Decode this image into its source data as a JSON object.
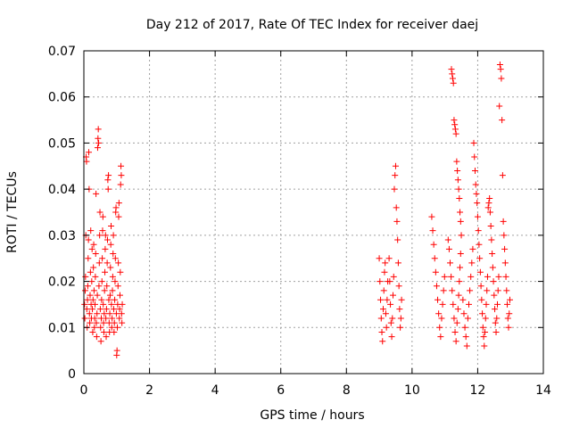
{
  "chart_data": {
    "type": "scatter",
    "title": "Day 212 of 2017, Rate Of TEC Index for receiver daej",
    "xlabel": "GPS time / hours",
    "ylabel": "ROTI / TECUs",
    "xlim": [
      0,
      14
    ],
    "ylim": [
      0,
      0.07
    ],
    "x_ticks": [
      "0",
      "2",
      "4",
      "6",
      "8",
      "10",
      "12",
      "14"
    ],
    "y_ticks": [
      "0",
      "0.01",
      "0.02",
      "0.03",
      "0.04",
      "0.05",
      "0.06",
      "0.07"
    ],
    "grid": true,
    "marker": "+",
    "series": [
      {
        "color": "#ff0000",
        "points": [
          [
            0.02,
            0.015
          ],
          [
            0.03,
            0.012
          ],
          [
            0.04,
            0.018
          ],
          [
            0.05,
            0.021
          ],
          [
            0.06,
            0.03
          ],
          [
            0.07,
            0.047
          ],
          [
            0.08,
            0.046
          ],
          [
            0.09,
            0.014
          ],
          [
            0.1,
            0.01
          ],
          [
            0.11,
            0.016
          ],
          [
            0.12,
            0.019
          ],
          [
            0.13,
            0.025
          ],
          [
            0.14,
            0.029
          ],
          [
            0.15,
            0.048
          ],
          [
            0.16,
            0.04
          ],
          [
            0.17,
            0.013
          ],
          [
            0.18,
            0.011
          ],
          [
            0.19,
            0.017
          ],
          [
            0.2,
            0.022
          ],
          [
            0.21,
            0.031
          ],
          [
            0.22,
            0.015
          ],
          [
            0.23,
            0.012
          ],
          [
            0.24,
            0.02
          ],
          [
            0.25,
            0.027
          ],
          [
            0.26,
            0.014
          ],
          [
            0.27,
            0.009
          ],
          [
            0.28,
            0.016
          ],
          [
            0.29,
            0.023
          ],
          [
            0.3,
            0.028
          ],
          [
            0.31,
            0.018
          ],
          [
            0.32,
            0.01
          ],
          [
            0.33,
            0.012
          ],
          [
            0.34,
            0.015
          ],
          [
            0.35,
            0.021
          ],
          [
            0.36,
            0.026
          ],
          [
            0.37,
            0.039
          ],
          [
            0.38,
            0.011
          ],
          [
            0.39,
            0.008
          ],
          [
            0.4,
            0.013
          ],
          [
            0.41,
            0.017
          ],
          [
            0.42,
            0.049
          ],
          [
            0.43,
            0.051
          ],
          [
            0.44,
            0.053
          ],
          [
            0.45,
            0.05
          ],
          [
            0.46,
            0.019
          ],
          [
            0.47,
            0.024
          ],
          [
            0.48,
            0.03
          ],
          [
            0.49,
            0.035
          ],
          [
            0.5,
            0.014
          ],
          [
            0.51,
            0.01
          ],
          [
            0.52,
            0.007
          ],
          [
            0.53,
            0.012
          ],
          [
            0.54,
            0.016
          ],
          [
            0.55,
            0.02
          ],
          [
            0.56,
            0.025
          ],
          [
            0.57,
            0.031
          ],
          [
            0.58,
            0.034
          ],
          [
            0.59,
            0.015
          ],
          [
            0.6,
            0.011
          ],
          [
            0.61,
            0.009
          ],
          [
            0.62,
            0.013
          ],
          [
            0.63,
            0.018
          ],
          [
            0.64,
            0.022
          ],
          [
            0.65,
            0.027
          ],
          [
            0.66,
            0.03
          ],
          [
            0.67,
            0.012
          ],
          [
            0.68,
            0.008
          ],
          [
            0.69,
            0.014
          ],
          [
            0.7,
            0.019
          ],
          [
            0.71,
            0.024
          ],
          [
            0.72,
            0.029
          ],
          [
            0.73,
            0.042
          ],
          [
            0.74,
            0.04
          ],
          [
            0.75,
            0.043
          ],
          [
            0.76,
            0.016
          ],
          [
            0.77,
            0.011
          ],
          [
            0.78,
            0.009
          ],
          [
            0.79,
            0.013
          ],
          [
            0.8,
            0.017
          ],
          [
            0.81,
            0.023
          ],
          [
            0.82,
            0.028
          ],
          [
            0.83,
            0.032
          ],
          [
            0.84,
            0.015
          ],
          [
            0.85,
            0.01
          ],
          [
            0.86,
            0.012
          ],
          [
            0.87,
            0.018
          ],
          [
            0.88,
            0.021
          ],
          [
            0.89,
            0.026
          ],
          [
            0.9,
            0.03
          ],
          [
            0.91,
            0.014
          ],
          [
            0.92,
            0.009
          ],
          [
            0.93,
            0.011
          ],
          [
            0.94,
            0.016
          ],
          [
            0.95,
            0.02
          ],
          [
            0.96,
            0.025
          ],
          [
            0.97,
            0.035
          ],
          [
            0.98,
            0.036
          ],
          [
            0.99,
            0.013
          ],
          [
            1.0,
            0.004
          ],
          [
            1.01,
            0.005
          ],
          [
            1.02,
            0.01
          ],
          [
            1.03,
            0.015
          ],
          [
            1.04,
            0.019
          ],
          [
            1.05,
            0.024
          ],
          [
            1.06,
            0.034
          ],
          [
            1.07,
            0.037
          ],
          [
            1.08,
            0.012
          ],
          [
            1.09,
            0.014
          ],
          [
            1.1,
            0.017
          ],
          [
            1.11,
            0.022
          ],
          [
            1.12,
            0.041
          ],
          [
            1.13,
            0.045
          ],
          [
            1.14,
            0.043
          ],
          [
            1.15,
            0.013
          ],
          [
            1.16,
            0.011
          ],
          [
            1.17,
            0.015
          ],
          [
            9.0,
            0.025
          ],
          [
            9.02,
            0.02
          ],
          [
            9.04,
            0.016
          ],
          [
            9.06,
            0.012
          ],
          [
            9.08,
            0.009
          ],
          [
            9.1,
            0.007
          ],
          [
            9.12,
            0.014
          ],
          [
            9.14,
            0.018
          ],
          [
            9.16,
            0.022
          ],
          [
            9.18,
            0.024
          ],
          [
            9.2,
            0.013
          ],
          [
            9.22,
            0.01
          ],
          [
            9.24,
            0.016
          ],
          [
            9.26,
            0.02
          ],
          [
            9.3,
            0.025
          ],
          [
            9.32,
            0.02
          ],
          [
            9.34,
            0.015
          ],
          [
            9.36,
            0.011
          ],
          [
            9.38,
            0.008
          ],
          [
            9.4,
            0.012
          ],
          [
            9.42,
            0.017
          ],
          [
            9.44,
            0.021
          ],
          [
            9.46,
            0.04
          ],
          [
            9.48,
            0.043
          ],
          [
            9.5,
            0.045
          ],
          [
            9.52,
            0.036
          ],
          [
            9.54,
            0.033
          ],
          [
            9.56,
            0.029
          ],
          [
            9.58,
            0.024
          ],
          [
            9.6,
            0.019
          ],
          [
            9.62,
            0.014
          ],
          [
            9.64,
            0.01
          ],
          [
            9.66,
            0.012
          ],
          [
            9.68,
            0.016
          ],
          [
            10.6,
            0.034
          ],
          [
            10.63,
            0.031
          ],
          [
            10.66,
            0.028
          ],
          [
            10.69,
            0.025
          ],
          [
            10.72,
            0.022
          ],
          [
            10.75,
            0.019
          ],
          [
            10.78,
            0.016
          ],
          [
            10.81,
            0.013
          ],
          [
            10.84,
            0.01
          ],
          [
            10.87,
            0.008
          ],
          [
            10.9,
            0.012
          ],
          [
            10.93,
            0.015
          ],
          [
            10.96,
            0.018
          ],
          [
            10.99,
            0.021
          ],
          [
            11.1,
            0.029
          ],
          [
            11.13,
            0.027
          ],
          [
            11.16,
            0.024
          ],
          [
            11.19,
            0.021
          ],
          [
            11.22,
            0.018
          ],
          [
            11.25,
            0.015
          ],
          [
            11.28,
            0.012
          ],
          [
            11.31,
            0.009
          ],
          [
            11.34,
            0.007
          ],
          [
            11.37,
            0.011
          ],
          [
            11.4,
            0.014
          ],
          [
            11.42,
            0.017
          ],
          [
            11.44,
            0.02
          ],
          [
            11.46,
            0.023
          ],
          [
            11.48,
            0.026
          ],
          [
            11.5,
            0.03
          ],
          [
            11.2,
            0.066
          ],
          [
            11.22,
            0.065
          ],
          [
            11.24,
            0.064
          ],
          [
            11.26,
            0.063
          ],
          [
            11.28,
            0.055
          ],
          [
            11.3,
            0.054
          ],
          [
            11.32,
            0.053
          ],
          [
            11.34,
            0.052
          ],
          [
            11.36,
            0.046
          ],
          [
            11.38,
            0.044
          ],
          [
            11.4,
            0.042
          ],
          [
            11.42,
            0.04
          ],
          [
            11.44,
            0.038
          ],
          [
            11.46,
            0.035
          ],
          [
            11.48,
            0.033
          ],
          [
            11.55,
            0.016
          ],
          [
            11.58,
            0.013
          ],
          [
            11.61,
            0.01
          ],
          [
            11.64,
            0.008
          ],
          [
            11.67,
            0.006
          ],
          [
            11.7,
            0.012
          ],
          [
            11.73,
            0.015
          ],
          [
            11.76,
            0.018
          ],
          [
            11.79,
            0.021
          ],
          [
            11.82,
            0.024
          ],
          [
            11.85,
            0.027
          ],
          [
            11.88,
            0.05
          ],
          [
            11.9,
            0.047
          ],
          [
            11.92,
            0.044
          ],
          [
            11.94,
            0.041
          ],
          [
            11.96,
            0.039
          ],
          [
            11.98,
            0.037
          ],
          [
            12.0,
            0.034
          ],
          [
            12.02,
            0.031
          ],
          [
            12.04,
            0.028
          ],
          [
            12.06,
            0.025
          ],
          [
            12.08,
            0.022
          ],
          [
            12.1,
            0.019
          ],
          [
            12.12,
            0.016
          ],
          [
            12.14,
            0.013
          ],
          [
            12.16,
            0.01
          ],
          [
            12.18,
            0.008
          ],
          [
            12.2,
            0.006
          ],
          [
            12.22,
            0.009
          ],
          [
            12.24,
            0.012
          ],
          [
            12.26,
            0.015
          ],
          [
            12.28,
            0.018
          ],
          [
            12.3,
            0.021
          ],
          [
            12.32,
            0.036
          ],
          [
            12.34,
            0.037
          ],
          [
            12.36,
            0.038
          ],
          [
            12.38,
            0.035
          ],
          [
            12.4,
            0.032
          ],
          [
            12.42,
            0.029
          ],
          [
            12.44,
            0.026
          ],
          [
            12.46,
            0.023
          ],
          [
            12.48,
            0.02
          ],
          [
            12.5,
            0.017
          ],
          [
            12.52,
            0.014
          ],
          [
            12.54,
            0.011
          ],
          [
            12.56,
            0.009
          ],
          [
            12.58,
            0.012
          ],
          [
            12.6,
            0.015
          ],
          [
            12.62,
            0.018
          ],
          [
            12.64,
            0.021
          ],
          [
            12.66,
            0.058
          ],
          [
            12.68,
            0.067
          ],
          [
            12.7,
            0.066
          ],
          [
            12.72,
            0.064
          ],
          [
            12.74,
            0.055
          ],
          [
            12.76,
            0.043
          ],
          [
            12.78,
            0.033
          ],
          [
            12.8,
            0.03
          ],
          [
            12.82,
            0.027
          ],
          [
            12.84,
            0.024
          ],
          [
            12.86,
            0.021
          ],
          [
            12.88,
            0.018
          ],
          [
            12.9,
            0.015
          ],
          [
            12.92,
            0.012
          ],
          [
            12.94,
            0.01
          ],
          [
            12.96,
            0.013
          ],
          [
            12.98,
            0.016
          ]
        ]
      }
    ]
  }
}
